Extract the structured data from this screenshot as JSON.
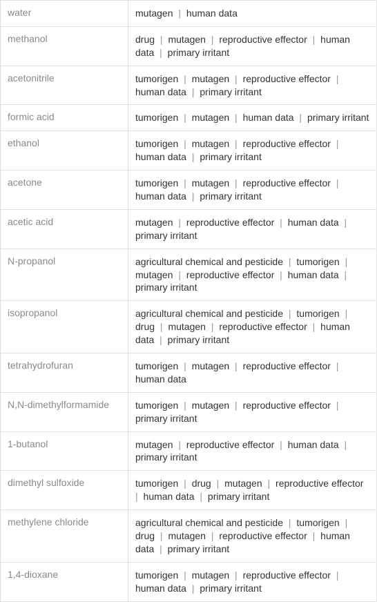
{
  "compounds": [
    {
      "name": "water",
      "properties": [
        "mutagen",
        "human data"
      ]
    },
    {
      "name": "methanol",
      "properties": [
        "drug",
        "mutagen",
        "reproductive effector",
        "human data",
        "primary irritant"
      ]
    },
    {
      "name": "acetonitrile",
      "properties": [
        "tumorigen",
        "mutagen",
        "reproductive effector",
        "human data",
        "primary irritant"
      ]
    },
    {
      "name": "formic acid",
      "properties": [
        "tumorigen",
        "mutagen",
        "human data",
        "primary irritant"
      ]
    },
    {
      "name": "ethanol",
      "properties": [
        "tumorigen",
        "mutagen",
        "reproductive effector",
        "human data",
        "primary irritant"
      ]
    },
    {
      "name": "acetone",
      "properties": [
        "tumorigen",
        "mutagen",
        "reproductive effector",
        "human data",
        "primary irritant"
      ]
    },
    {
      "name": "acetic acid",
      "properties": [
        "mutagen",
        "reproductive effector",
        "human data",
        "primary irritant"
      ]
    },
    {
      "name": "N-propanol",
      "properties": [
        "agricultural chemical and pesticide",
        "tumorigen",
        "mutagen",
        "reproductive effector",
        "human data",
        "primary irritant"
      ]
    },
    {
      "name": "isopropanol",
      "properties": [
        "agricultural chemical and pesticide",
        "tumorigen",
        "drug",
        "mutagen",
        "reproductive effector",
        "human data",
        "primary irritant"
      ]
    },
    {
      "name": "tetrahydrofuran",
      "properties": [
        "tumorigen",
        "mutagen",
        "reproductive effector",
        "human data"
      ]
    },
    {
      "name": "N,N-dimethylformamide",
      "properties": [
        "tumorigen",
        "mutagen",
        "reproductive effector",
        "primary irritant"
      ]
    },
    {
      "name": "1-butanol",
      "properties": [
        "mutagen",
        "reproductive effector",
        "human data",
        "primary irritant"
      ]
    },
    {
      "name": "dimethyl sulfoxide",
      "properties": [
        "tumorigen",
        "drug",
        "mutagen",
        "reproductive effector",
        "human data",
        "primary irritant"
      ]
    },
    {
      "name": "methylene chloride",
      "properties": [
        "agricultural chemical and pesticide",
        "tumorigen",
        "drug",
        "mutagen",
        "reproductive effector",
        "human data",
        "primary irritant"
      ]
    },
    {
      "name": "1,4-dioxane",
      "properties": [
        "tumorigen",
        "mutagen",
        "reproductive effector",
        "human data",
        "primary irritant"
      ]
    }
  ],
  "styling": {
    "separator": "|",
    "name_color": "#8a8a8a",
    "property_color": "#333333",
    "border_color": "#e0e0e0",
    "background_color": "#ffffff",
    "font_size": 14,
    "name_column_width": 185,
    "total_width": 546
  }
}
